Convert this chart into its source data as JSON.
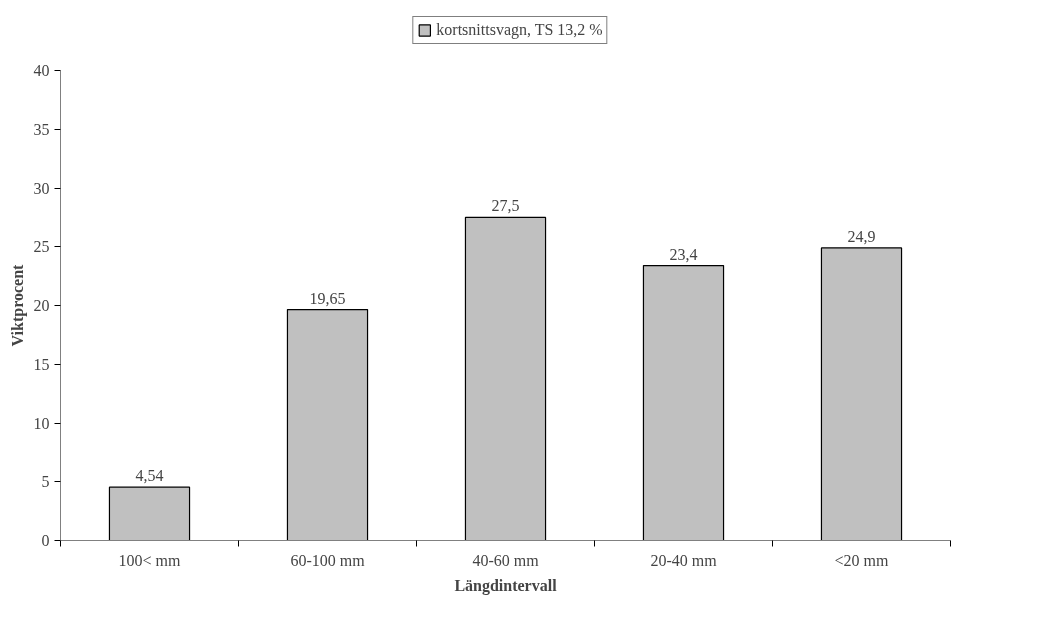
{
  "chart_data": {
    "type": "bar",
    "xlabel": "Längdintervall",
    "ylabel": "Viktprocent",
    "categories": [
      "100< mm",
      "60-100 mm",
      "40-60 mm",
      "20-40 mm",
      "<20 mm"
    ],
    "series": [
      {
        "name": "kortsnittsvagn, TS 13,2 %",
        "color": "#c0c0c0",
        "values": [
          4.54,
          19.65,
          27.5,
          23.4,
          24.9
        ]
      }
    ],
    "value_labels": [
      "4,54",
      "19,65",
      "27,5",
      "23,4",
      "24,9"
    ],
    "ylim": [
      0,
      40
    ],
    "yticks": [
      0,
      5,
      10,
      15,
      20,
      25,
      30,
      35,
      40
    ],
    "grid": false,
    "legend": "top"
  }
}
